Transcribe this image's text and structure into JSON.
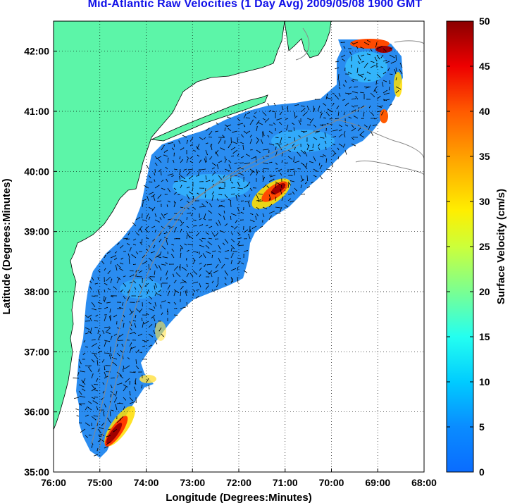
{
  "title": "Mid-Atlantic Raw Velocities (1 Day Avg) 2009/05/08 1900 GMT",
  "map": {
    "xlabel": "Longitude (Degrees:Minutes)",
    "ylabel": "Latitude (Degrees:Minutes)",
    "x_ticks": [
      "76:00",
      "75:00",
      "74:00",
      "73:00",
      "72:00",
      "71:00",
      "70:00",
      "69:00",
      "68:00"
    ],
    "y_ticks": [
      "42:00",
      "41:00",
      "40:00",
      "39:00",
      "38:00",
      "37:00",
      "36:00",
      "35:00"
    ],
    "lon_range": [
      -76,
      -68
    ],
    "lat_range": [
      35,
      42.5
    ],
    "land_color": "#5cf5a8",
    "grid": "dotted"
  },
  "colorbar": {
    "label": "Surface Velocity (cm/s)",
    "ticks": [
      "0",
      "5",
      "10",
      "15",
      "20",
      "25",
      "30",
      "35",
      "40",
      "45",
      "50"
    ],
    "range": [
      0,
      50
    ],
    "colormap": "jet"
  }
}
